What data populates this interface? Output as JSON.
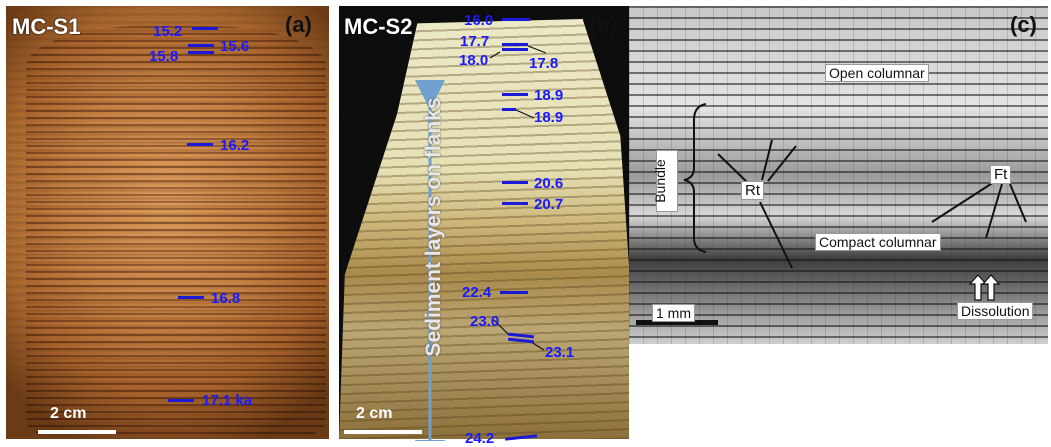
{
  "panel_a": {
    "sample_label": "MC-S1",
    "panel_letter": "(a)",
    "scale_label": "2 cm",
    "ages": [
      "15.2",
      "15.6",
      "15.8",
      "16.2",
      "16.8",
      "17.1 ka"
    ]
  },
  "panel_b": {
    "sample_label": "MC-S2",
    "panel_letter": "(b)",
    "scale_label": "2 cm",
    "arrow_label": "Sediment layers on flanks",
    "ages": [
      "16.0",
      "17.7",
      "18.0",
      "17.8",
      "18.9",
      "18.9",
      "20.6",
      "20.7",
      "22.4",
      "23.0",
      "23.1",
      "24.2"
    ],
    "colors": {
      "arrow": "#6fa0d0",
      "age": "#1a1aff"
    }
  },
  "panel_c": {
    "panel_letter": "(c)",
    "scale_label": "1 mm",
    "labels": {
      "open_columnar": "Open columnar",
      "compact_columnar": "Compact columnar",
      "bundle": "Bundle",
      "rt": "Rt",
      "ft": "Ft",
      "dissolution": "Dissolution"
    }
  }
}
